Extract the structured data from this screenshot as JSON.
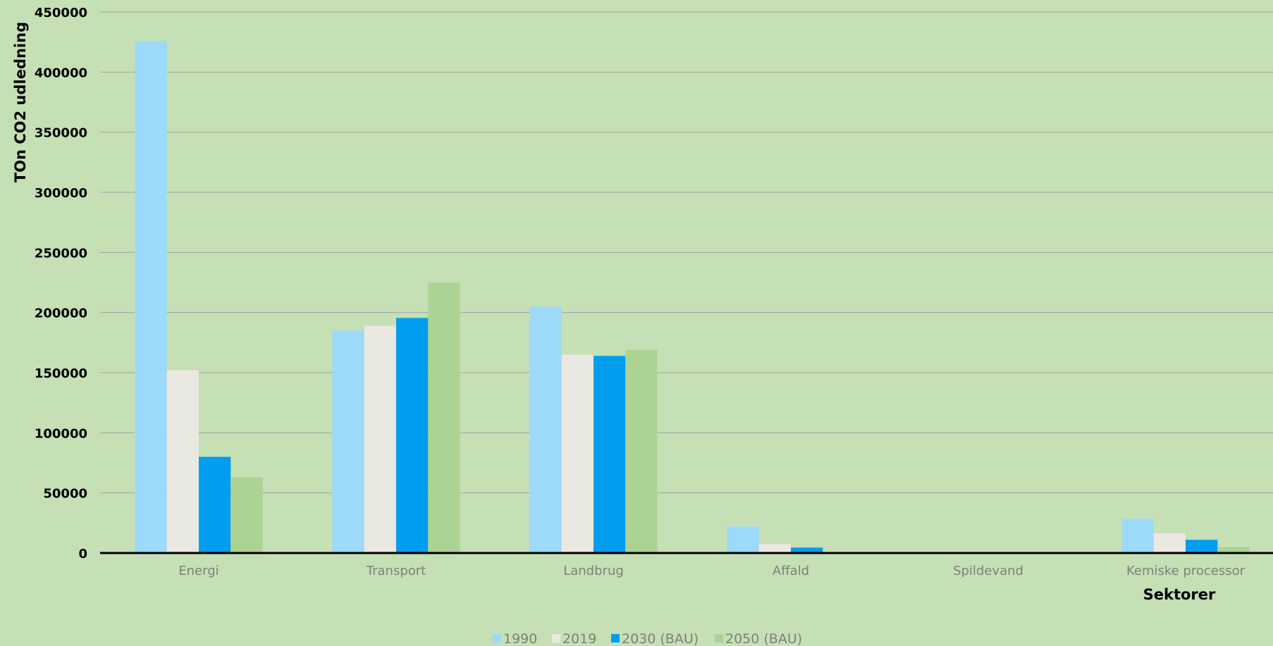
{
  "chart_data": {
    "type": "bar",
    "title": "",
    "xlabel": "Sektorer",
    "ylabel": "TOn CO2 udledning",
    "ylim": [
      0,
      450000
    ],
    "yticks": [
      "0",
      "50000",
      "100000",
      "150000",
      "200000",
      "250000",
      "300000",
      "350000",
      "400000",
      "450000"
    ],
    "grid": true,
    "legend_position": "bottom",
    "categories": [
      "Energi",
      "Transport",
      "Landbrug",
      "Affald",
      "Spildevand",
      "Kemiske processor"
    ],
    "series": [
      {
        "name": "1990",
        "color": "#9dd9f8",
        "values": [
          426000,
          185000,
          205000,
          22000,
          0,
          28500
        ]
      },
      {
        "name": "2019",
        "color": "#e9e8e1",
        "values": [
          152000,
          189000,
          165000,
          7500,
          0,
          16500
        ]
      },
      {
        "name": "2030 (BAU)",
        "color": "#039def",
        "values": [
          80000,
          195500,
          164000,
          4500,
          0,
          11000
        ]
      },
      {
        "name": "2050 (BAU)",
        "color": "#add394",
        "values": [
          63000,
          225000,
          169000,
          0,
          0,
          5000
        ]
      }
    ]
  }
}
